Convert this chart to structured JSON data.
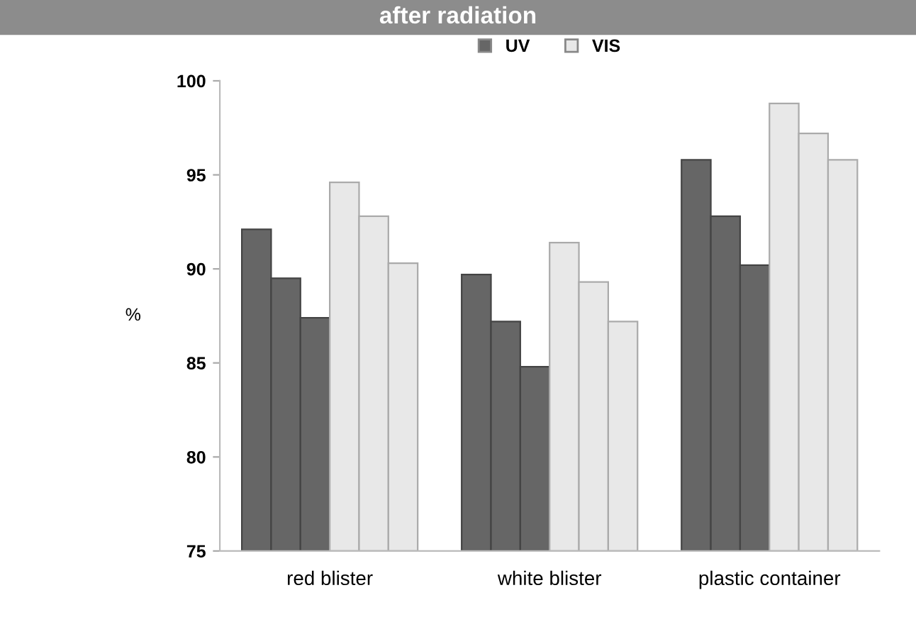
{
  "chart_data": {
    "type": "bar",
    "title": "after radiation",
    "ylabel": "%",
    "categories": [
      "red blister",
      "white blister",
      "plastic container"
    ],
    "series": [
      {
        "name": "UV",
        "color": "#666666",
        "values": [
          92.1,
          89.7,
          95.8
        ]
      },
      {
        "color": "#666666",
        "values": [
          89.5,
          87.2,
          92.8
        ]
      },
      {
        "color": "#666666",
        "values": [
          87.4,
          84.8,
          90.2
        ]
      },
      {
        "name": "VIS",
        "color": "#e8e8e8",
        "values": [
          94.6,
          91.4,
          98.8
        ]
      },
      {
        "color": "#e8e8e8",
        "values": [
          92.8,
          89.3,
          97.2
        ]
      },
      {
        "color": "#e8e8e8",
        "values": [
          90.3,
          87.2,
          95.8
        ]
      }
    ],
    "ylim": [
      75,
      100
    ],
    "yticks": [
      75,
      80,
      85,
      90,
      95,
      100
    ],
    "grid": false,
    "legend": "top"
  }
}
